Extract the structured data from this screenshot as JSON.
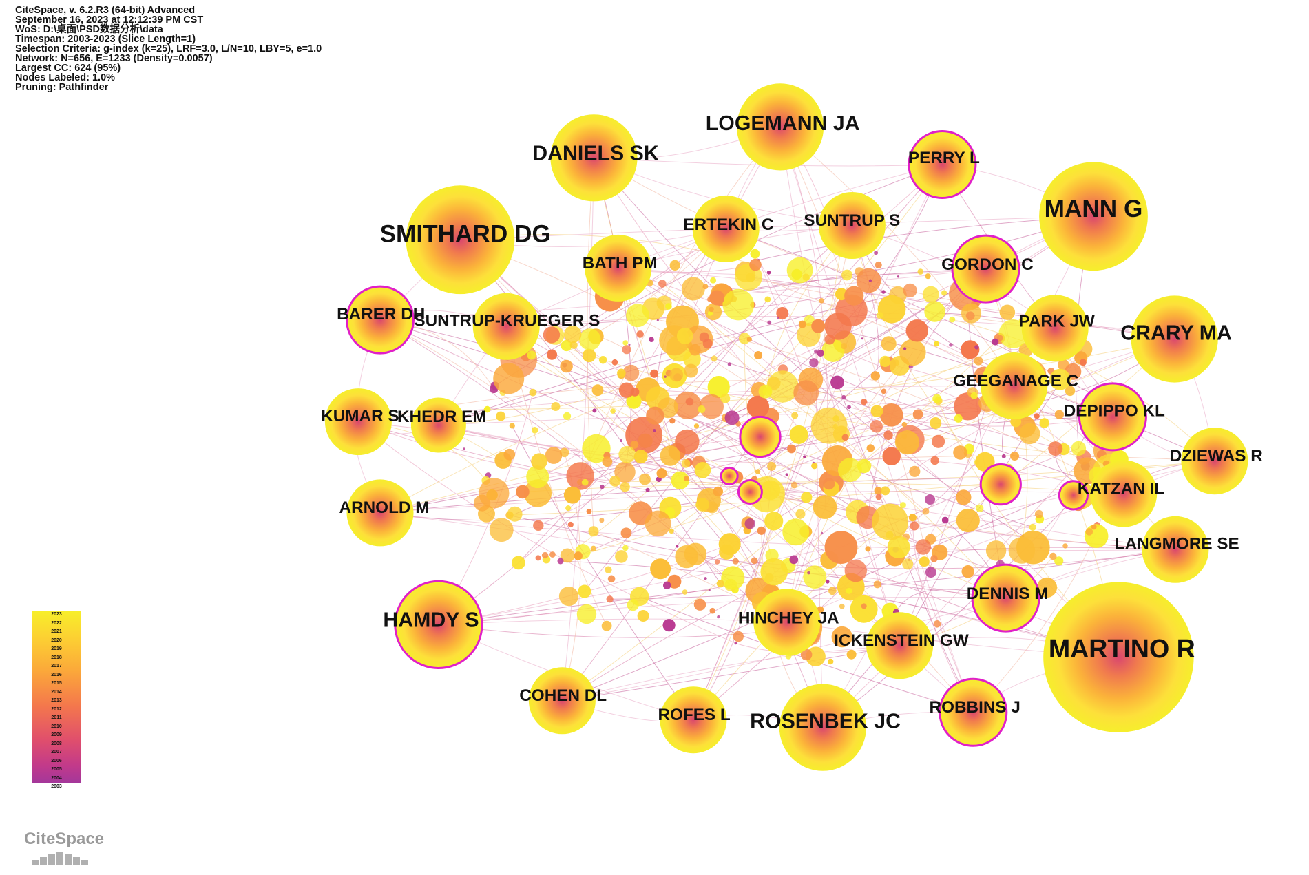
{
  "header": {
    "lines": [
      "CiteSpace, v. 6.2.R3 (64-bit) Advanced",
      "September 16, 2023 at 12:12:39 PM CST",
      "WoS: D:\\桌面\\PSD数据分析\\data",
      "Timespan: 2003-2023 (Slice Length=1)",
      "Selection Criteria: g-index (k=25), LRF=3.0, L/N=10, LBY=5, e=1.0",
      "Network: N=656, E=1233 (Density=0.0057)",
      "Largest CC: 624 (95%)",
      "Nodes Labeled: 1.0%",
      "Pruning: Pathfinder"
    ]
  },
  "legend": {
    "years": [
      "2023",
      "2022",
      "2021",
      "2020",
      "2019",
      "2018",
      "2017",
      "2016",
      "2015",
      "2014",
      "2013",
      "2012",
      "2011",
      "2010",
      "2009",
      "2008",
      "2007",
      "2006",
      "2005",
      "2004",
      "2003"
    ]
  },
  "logo": {
    "text": "CiteSpace"
  },
  "colors": {
    "newest": "#f7ef2a",
    "oldest": "#a4379a",
    "centrality_ring": "#e020c8"
  },
  "network": {
    "labeled_nodes": [
      {
        "label": "LOGEMANN JA",
        "size": "large",
        "ring": false
      },
      {
        "label": "DANIELS SK",
        "size": "large",
        "ring": false
      },
      {
        "label": "PERRY L",
        "size": "medium",
        "ring": true
      },
      {
        "label": "MANN G",
        "size": "xlarge",
        "ring": false
      },
      {
        "label": "SMITHARD DG",
        "size": "xlarge",
        "ring": false
      },
      {
        "label": "ERTEKIN C",
        "size": "medium",
        "ring": false
      },
      {
        "label": "SUNTRUP S",
        "size": "medium",
        "ring": false
      },
      {
        "label": "BATH PM",
        "size": "medium",
        "ring": false
      },
      {
        "label": "GORDON C",
        "size": "medium",
        "ring": true
      },
      {
        "label": "BARER DH",
        "size": "medium",
        "ring": true
      },
      {
        "label": "SUNTRUP-KRUEGER S",
        "size": "medium",
        "ring": false
      },
      {
        "label": "PARK JW",
        "size": "medium",
        "ring": false
      },
      {
        "label": "CRARY MA",
        "size": "large",
        "ring": false
      },
      {
        "label": "GEEGANAGE C",
        "size": "medium",
        "ring": false
      },
      {
        "label": "KUMAR S",
        "size": "medium",
        "ring": false
      },
      {
        "label": "KHEDR EM",
        "size": "small",
        "ring": false
      },
      {
        "label": "DEPIPPO KL",
        "size": "medium",
        "ring": true
      },
      {
        "label": "DZIEWAS R",
        "size": "medium",
        "ring": false
      },
      {
        "label": "KATZAN IL",
        "size": "medium",
        "ring": false
      },
      {
        "label": "ARNOLD M",
        "size": "medium",
        "ring": false
      },
      {
        "label": "LANGMORE SE",
        "size": "medium",
        "ring": false
      },
      {
        "label": "DENNIS M",
        "size": "medium",
        "ring": true
      },
      {
        "label": "HAMDY S",
        "size": "large",
        "ring": true
      },
      {
        "label": "HINCHEY JA",
        "size": "medium",
        "ring": false
      },
      {
        "label": "MARTINO R",
        "size": "xxlarge",
        "ring": false
      },
      {
        "label": "ICKENSTEIN GW",
        "size": "medium",
        "ring": false
      },
      {
        "label": "COHEN DL",
        "size": "medium",
        "ring": false
      },
      {
        "label": "ROFES L",
        "size": "medium",
        "ring": false
      },
      {
        "label": "ROSENBEK JC",
        "size": "large",
        "ring": false
      },
      {
        "label": "ROBBINS J",
        "size": "medium",
        "ring": true
      }
    ]
  }
}
